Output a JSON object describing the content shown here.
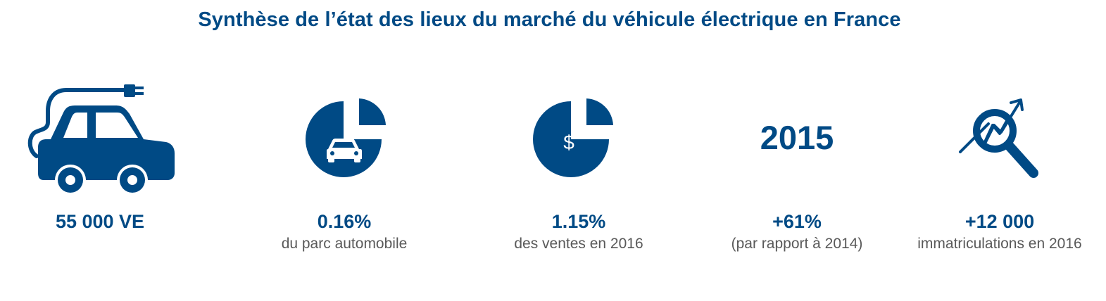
{
  "colors": {
    "primary": "#004a85",
    "caption": "#595959",
    "background": "#ffffff"
  },
  "title": "Synthèse de l’état des lieux du marché du véhicule électrique en France",
  "stats": [
    {
      "icon": "electric-car-icon",
      "value": "55 000 VE",
      "caption": ""
    },
    {
      "icon": "pie-chart-car-icon",
      "value": "0.16%",
      "caption": "du parc automobile"
    },
    {
      "icon": "pie-chart-dollar-icon",
      "value": "1.15%",
      "caption": "des ventes en 2016",
      "icon_text": "$"
    },
    {
      "icon": "year-label",
      "value": "+61%",
      "caption": "(par rapport à 2014)",
      "icon_text": "2015"
    },
    {
      "icon": "magnifier-growth-icon",
      "value": "+12 000",
      "caption": "immatriculations  en 2016"
    }
  ]
}
